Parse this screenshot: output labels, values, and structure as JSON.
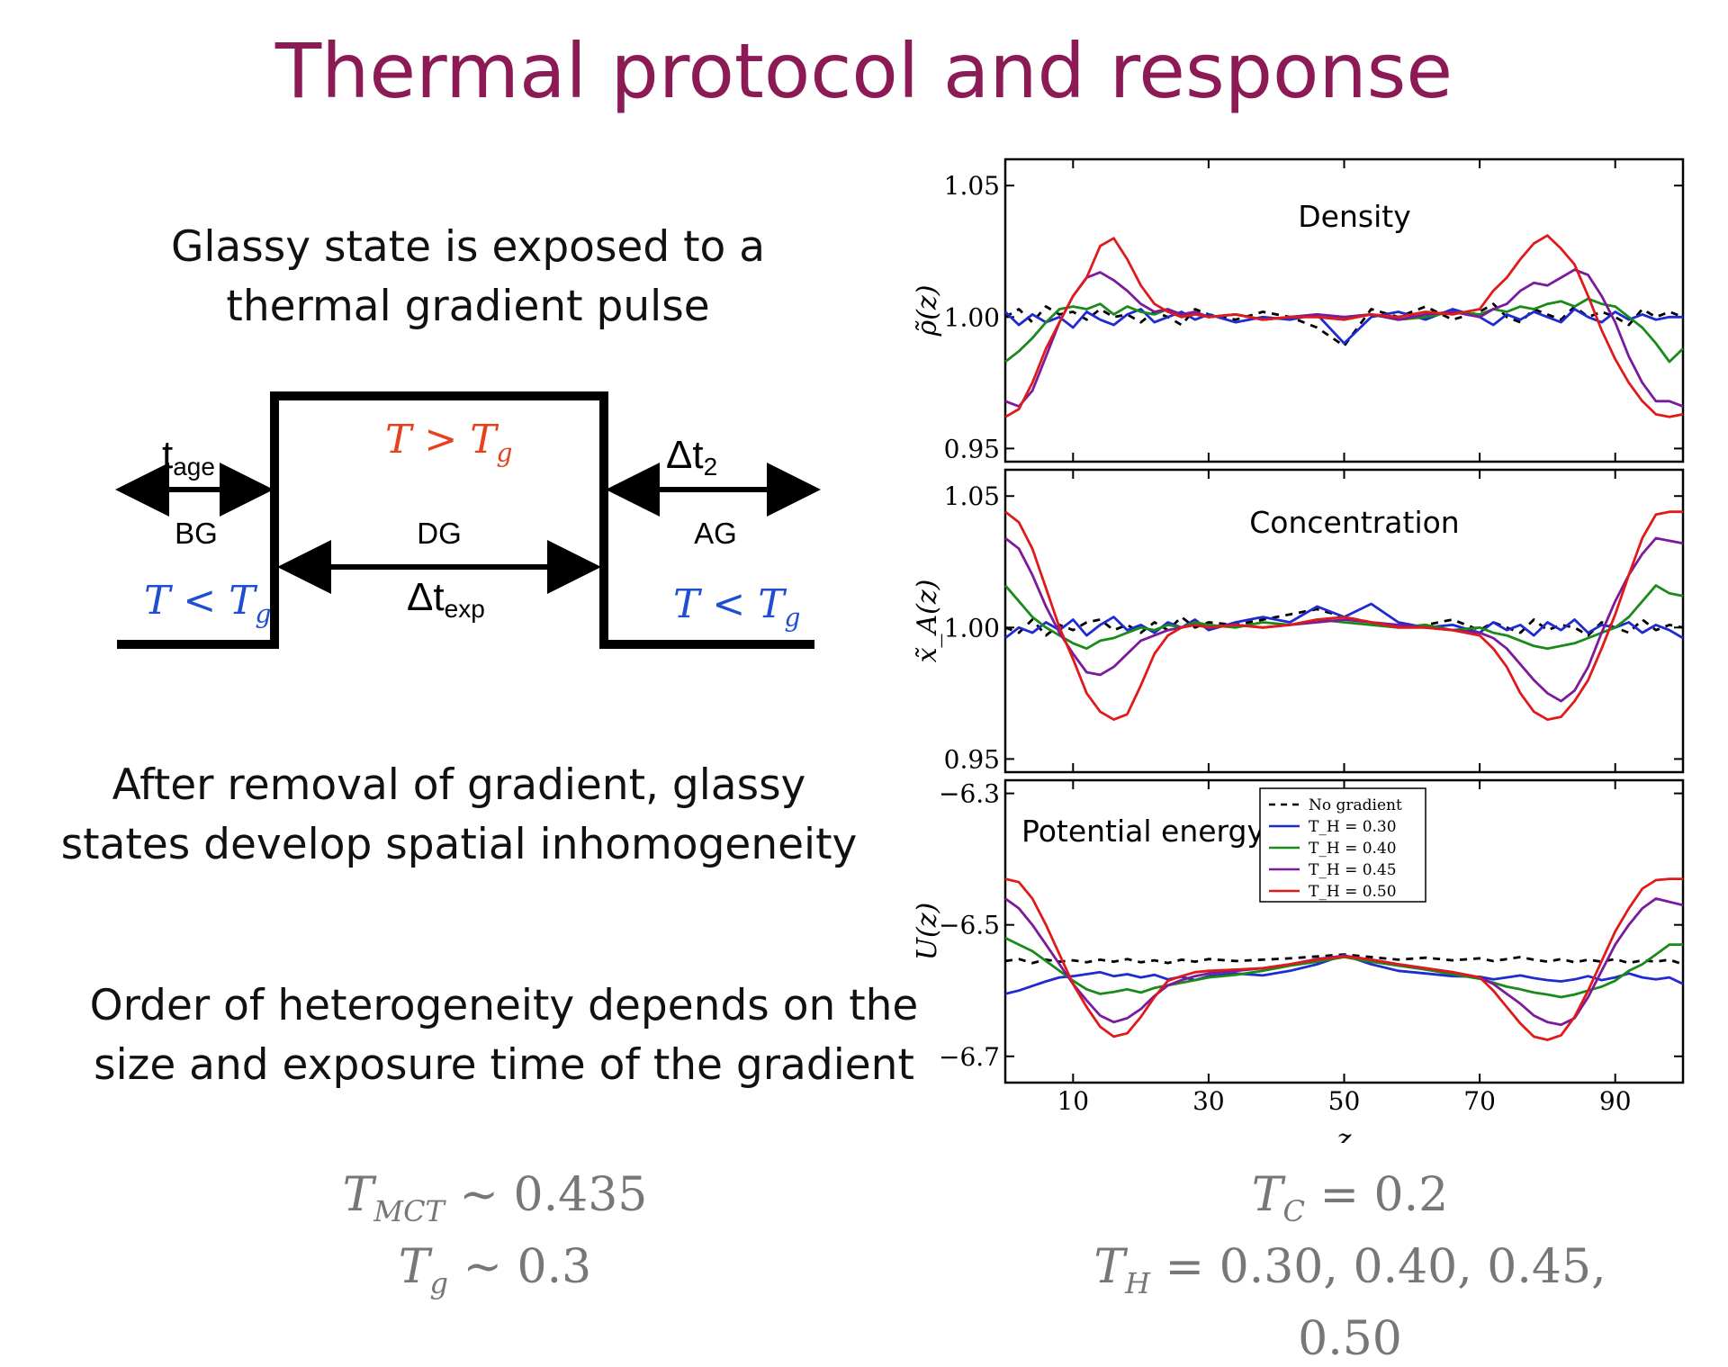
{
  "title": "Thermal protocol and response",
  "text1": [
    "Glassy state is exposed to a",
    "thermal gradient pulse"
  ],
  "text2": [
    "After removal of gradient, glassy",
    "states develop spatial inhomogeneity"
  ],
  "text3": [
    "Order of heterogeneity depends on the",
    "size and exposure time of the gradient"
  ],
  "protocol": {
    "t_age": "t",
    "t_age_sub": "age",
    "bg": "BG",
    "dg": "DG",
    "ag": "AG",
    "dt2": "Δt",
    "dt2_sub": "2",
    "dtexp": "Δt",
    "dtexp_sub": "exp",
    "hot": "T > T",
    "hot_sub": "g",
    "cold_left": "T < T",
    "cold_left_sub": "g",
    "cold_right": "T < T",
    "cold_right_sub": "g",
    "hot_color": "#e8401c",
    "cold_color": "#1f4fd1"
  },
  "bottom_left": {
    "tmct": "T",
    "tmct_sub": "MCT",
    "tmct_val": " ~ 0.435",
    "tg": "T",
    "tg_sub": "g",
    "tg_val": " ~ 0.3"
  },
  "bottom_right": {
    "tc": "T",
    "tc_sub": "C",
    "tc_val": " = 0.2",
    "th": "T",
    "th_sub": "H",
    "th_val": " = 0.30, 0.40, 0.45, 0.50"
  },
  "chart_data": [
    {
      "type": "line",
      "title": "Density",
      "ylabel": "ρ̃(z)",
      "xlim": [
        0,
        100
      ],
      "ylim": [
        0.945,
        1.06
      ],
      "yticks": [
        0.95,
        1.0,
        1.05
      ],
      "ytick_labels": [
        "0.95",
        "1.00",
        "1.05"
      ],
      "xticks": [
        10,
        30,
        50,
        70,
        90
      ],
      "x": [
        0,
        2,
        4,
        6,
        8,
        10,
        12,
        14,
        16,
        18,
        20,
        22,
        24,
        26,
        28,
        30,
        34,
        38,
        42,
        46,
        50,
        54,
        58,
        62,
        66,
        70,
        72,
        74,
        76,
        78,
        80,
        82,
        84,
        86,
        88,
        90,
        92,
        94,
        96,
        98,
        100
      ],
      "series": [
        {
          "name": "No gradient",
          "color": "#000000",
          "dashed": true,
          "values": [
            1.0,
            1.003,
            0.998,
            1.004,
            1.001,
            1.002,
            0.999,
            1.003,
            1.0,
            1.001,
            0.998,
            1.002,
            1.0,
            0.997,
            1.003,
            1.001,
            0.999,
            1.002,
            1.0,
            0.996,
            0.989,
            1.003,
            1.0,
            1.004,
            0.999,
            1.002,
            1.005,
            1.0,
            0.998,
            1.003,
            1.001,
            0.999,
            1.004,
            1.0,
            1.002,
            1.0,
            0.997,
            1.003,
            1.0,
            1.002,
            1.0
          ]
        },
        {
          "name": "T_H = 0.30",
          "color": "#1f2bd1",
          "values": [
            1.002,
            0.997,
            1.001,
            0.998,
            1.0,
            0.996,
            1.002,
            0.999,
            0.997,
            1.001,
            1.003,
            0.998,
            1.0,
            1.002,
            0.999,
            1.001,
            0.998,
            1.0,
            0.999,
            1.001,
            0.99,
            1.0,
            1.002,
            0.999,
            1.003,
            1.0,
            0.997,
            1.001,
            0.999,
            1.002,
            1.0,
            0.998,
            1.003,
            1.0,
            0.998,
            1.002,
            0.999,
            1.001,
            0.999,
            1.0,
            1.0
          ]
        },
        {
          "name": "T_H = 0.40",
          "color": "#1a8a1a",
          "values": [
            0.983,
            0.987,
            0.992,
            0.998,
            1.003,
            1.004,
            1.003,
            1.005,
            1.001,
            1.004,
            1.002,
            1.001,
            1.003,
            1.0,
            1.002,
            1.0,
            1.001,
            0.999,
            1.0,
            1.001,
            1.0,
            1.001,
            0.999,
            1.0,
            1.002,
            1.001,
            1.003,
            1.002,
            1.004,
            1.003,
            1.005,
            1.006,
            1.004,
            1.007,
            1.005,
            1.004,
            1.0,
            0.996,
            0.99,
            0.983,
            0.988
          ]
        },
        {
          "name": "T_H = 0.45",
          "color": "#7b1a9a",
          "values": [
            0.968,
            0.966,
            0.972,
            0.985,
            0.998,
            1.008,
            1.015,
            1.017,
            1.014,
            1.01,
            1.005,
            1.002,
            1.003,
            1.001,
            1.002,
            1.0,
            1.001,
            0.999,
            1.0,
            1.001,
            1.0,
            1.001,
            0.999,
            1.001,
            1.002,
            1.0,
            1.003,
            1.005,
            1.01,
            1.013,
            1.012,
            1.015,
            1.018,
            1.016,
            1.008,
            0.998,
            0.985,
            0.975,
            0.968,
            0.968,
            0.966
          ]
        },
        {
          "name": "T_H = 0.50",
          "color": "#e01a1a",
          "values": [
            0.962,
            0.965,
            0.975,
            0.988,
            0.998,
            1.008,
            1.015,
            1.027,
            1.03,
            1.022,
            1.012,
            1.005,
            1.002,
            1.0,
            1.001,
            1.0,
            1.001,
            0.999,
            1.0,
            1.0,
            0.999,
            1.001,
            1.0,
            1.002,
            1.001,
            1.003,
            1.01,
            1.015,
            1.022,
            1.028,
            1.031,
            1.026,
            1.02,
            1.008,
            0.995,
            0.984,
            0.975,
            0.968,
            0.963,
            0.962,
            0.963
          ]
        }
      ]
    },
    {
      "type": "line",
      "title": "Concentration",
      "ylabel": "x̃_A(z)",
      "xlim": [
        0,
        100
      ],
      "ylim": [
        0.945,
        1.06
      ],
      "yticks": [
        0.95,
        1.0,
        1.05
      ],
      "ytick_labels": [
        "0.95",
        "1.00",
        "1.05"
      ],
      "xticks": [
        10,
        30,
        50,
        70,
        90
      ],
      "x": [
        0,
        2,
        4,
        6,
        8,
        10,
        12,
        14,
        16,
        18,
        20,
        22,
        24,
        26,
        28,
        30,
        34,
        38,
        42,
        46,
        50,
        54,
        58,
        62,
        66,
        70,
        72,
        74,
        76,
        78,
        80,
        82,
        84,
        86,
        88,
        90,
        92,
        94,
        96,
        98,
        100
      ],
      "series": [
        {
          "name": "No gradient",
          "color": "#000000",
          "dashed": true,
          "values": [
            1.0,
            0.998,
            1.003,
            0.997,
            1.001,
            0.999,
            1.002,
            1.003,
            0.999,
            1.001,
            0.998,
            1.002,
            0.999,
            1.004,
            1.0,
            1.002,
            1.001,
            1.003,
            1.005,
            1.007,
            1.004,
            1.002,
            1.0,
            1.001,
            1.003,
            0.999,
            1.002,
            1.0,
            0.998,
            1.003,
            0.999,
            1.001,
            1.0,
            0.997,
            1.002,
            1.0,
            0.998,
            1.003,
            0.999,
            1.001,
            1.0
          ]
        },
        {
          "name": "T_H = 0.30",
          "color": "#1f2bd1",
          "values": [
            0.996,
            1.0,
            0.998,
            1.002,
            0.999,
            1.003,
            0.997,
            1.001,
            1.004,
            0.999,
            1.001,
            0.998,
            1.002,
            1.0,
            1.003,
            0.999,
            1.002,
            1.004,
            1.002,
            1.008,
            1.004,
            1.009,
            1.002,
            1.0,
            1.001,
            0.998,
            1.002,
            0.999,
            1.001,
            0.997,
            1.002,
            0.999,
            1.003,
            0.998,
            1.001,
            1.0,
            1.002,
            0.998,
            1.001,
            0.999,
            0.996
          ]
        },
        {
          "name": "T_H = 0.40",
          "color": "#1a8a1a",
          "values": [
            1.016,
            1.01,
            1.004,
            1.0,
            0.997,
            0.994,
            0.992,
            0.995,
            0.996,
            0.998,
            1.0,
            0.999,
            1.001,
            1.0,
            1.002,
            1.001,
            1.0,
            1.002,
            1.001,
            1.003,
            1.002,
            1.001,
            1.0,
            1.001,
            0.999,
            1.0,
            0.998,
            0.997,
            0.995,
            0.993,
            0.992,
            0.993,
            0.994,
            0.996,
            0.998,
            1.0,
            1.004,
            1.01,
            1.016,
            1.013,
            1.012
          ]
        },
        {
          "name": "T_H = 0.45",
          "color": "#7b1a9a",
          "values": [
            1.034,
            1.03,
            1.02,
            1.008,
            0.998,
            0.99,
            0.983,
            0.982,
            0.985,
            0.99,
            0.995,
            0.997,
            0.999,
            1.0,
            1.001,
            1.0,
            1.001,
            1.0,
            1.001,
            1.002,
            1.003,
            1.002,
            1.001,
            1.0,
            0.999,
            0.998,
            0.996,
            0.992,
            0.986,
            0.98,
            0.975,
            0.972,
            0.976,
            0.985,
            0.998,
            1.01,
            1.02,
            1.028,
            1.034,
            1.033,
            1.032
          ]
        },
        {
          "name": "T_H = 0.50",
          "color": "#e01a1a",
          "values": [
            1.044,
            1.04,
            1.03,
            1.015,
            1.0,
            0.988,
            0.975,
            0.968,
            0.965,
            0.967,
            0.978,
            0.99,
            0.997,
            1.0,
            1.001,
            1.0,
            1.001,
            1.0,
            1.001,
            1.003,
            1.004,
            1.002,
            1.0,
            1.0,
            0.999,
            0.997,
            0.992,
            0.985,
            0.975,
            0.968,
            0.965,
            0.966,
            0.972,
            0.98,
            0.992,
            1.005,
            1.02,
            1.034,
            1.043,
            1.044,
            1.044
          ]
        }
      ]
    },
    {
      "type": "line",
      "title": "Potential energy",
      "ylabel": "U(z)",
      "xlabel": "z",
      "xlim": [
        0,
        100
      ],
      "ylim": [
        -6.74,
        -6.28
      ],
      "yticks": [
        -6.3,
        -6.5,
        -6.7
      ],
      "ytick_labels": [
        "−6.3",
        "−6.5",
        "−6.7"
      ],
      "xticks": [
        10,
        30,
        50,
        70,
        90
      ],
      "xtick_labels": [
        "10",
        "30",
        "50",
        "70",
        "90"
      ],
      "x": [
        0,
        2,
        4,
        6,
        8,
        10,
        12,
        14,
        16,
        18,
        20,
        22,
        24,
        26,
        28,
        30,
        34,
        38,
        42,
        46,
        50,
        54,
        58,
        62,
        66,
        70,
        72,
        74,
        76,
        78,
        80,
        82,
        84,
        86,
        88,
        90,
        92,
        94,
        96,
        98,
        100
      ],
      "legend": {
        "position": "top-center",
        "entries": [
          "No gradient",
          "T_H = 0.30",
          "T_H = 0.40",
          "T_H = 0.45",
          "T_H = 0.50"
        ]
      },
      "series": [
        {
          "name": "No gradient",
          "color": "#000000",
          "dashed": true,
          "values": [
            -6.555,
            -6.552,
            -6.558,
            -6.553,
            -6.556,
            -6.554,
            -6.557,
            -6.553,
            -6.556,
            -6.552,
            -6.557,
            -6.554,
            -6.558,
            -6.553,
            -6.556,
            -6.552,
            -6.555,
            -6.553,
            -6.551,
            -6.548,
            -6.545,
            -6.549,
            -6.553,
            -6.55,
            -6.554,
            -6.551,
            -6.555,
            -6.552,
            -6.549,
            -6.553,
            -6.556,
            -6.552,
            -6.557,
            -6.553,
            -6.556,
            -6.552,
            -6.558,
            -6.554,
            -6.556,
            -6.553,
            -6.56
          ]
        },
        {
          "name": "T_H = 0.30",
          "color": "#1f2bd1",
          "values": [
            -6.605,
            -6.6,
            -6.593,
            -6.586,
            -6.58,
            -6.578,
            -6.575,
            -6.572,
            -6.578,
            -6.575,
            -6.58,
            -6.576,
            -6.583,
            -6.579,
            -6.584,
            -6.578,
            -6.574,
            -6.577,
            -6.57,
            -6.56,
            -6.546,
            -6.56,
            -6.57,
            -6.574,
            -6.578,
            -6.579,
            -6.583,
            -6.58,
            -6.577,
            -6.581,
            -6.584,
            -6.586,
            -6.583,
            -6.578,
            -6.584,
            -6.58,
            -6.574,
            -6.58,
            -6.583,
            -6.58,
            -6.59
          ]
        },
        {
          "name": "T_H = 0.40",
          "color": "#1a8a1a",
          "values": [
            -6.52,
            -6.53,
            -6.54,
            -6.555,
            -6.57,
            -6.585,
            -6.598,
            -6.605,
            -6.602,
            -6.598,
            -6.603,
            -6.596,
            -6.592,
            -6.588,
            -6.584,
            -6.58,
            -6.576,
            -6.57,
            -6.562,
            -6.556,
            -6.549,
            -6.556,
            -6.562,
            -6.568,
            -6.575,
            -6.582,
            -6.588,
            -6.594,
            -6.598,
            -6.603,
            -6.606,
            -6.61,
            -6.606,
            -6.6,
            -6.594,
            -6.585,
            -6.57,
            -6.56,
            -6.545,
            -6.53,
            -6.53
          ]
        },
        {
          "name": "T_H = 0.45",
          "color": "#7b1a9a",
          "values": [
            -6.46,
            -6.475,
            -6.5,
            -6.53,
            -6.56,
            -6.59,
            -6.615,
            -6.638,
            -6.648,
            -6.642,
            -6.628,
            -6.608,
            -6.592,
            -6.584,
            -6.578,
            -6.574,
            -6.57,
            -6.566,
            -6.56,
            -6.552,
            -6.547,
            -6.553,
            -6.56,
            -6.566,
            -6.572,
            -6.58,
            -6.59,
            -6.605,
            -6.62,
            -6.638,
            -6.648,
            -6.652,
            -6.642,
            -6.61,
            -6.57,
            -6.53,
            -6.5,
            -6.475,
            -6.46,
            -6.465,
            -6.47
          ]
        },
        {
          "name": "T_H = 0.50",
          "color": "#e01a1a",
          "values": [
            -6.43,
            -6.435,
            -6.46,
            -6.5,
            -6.545,
            -6.59,
            -6.625,
            -6.655,
            -6.67,
            -6.665,
            -6.64,
            -6.61,
            -6.585,
            -6.578,
            -6.572,
            -6.57,
            -6.568,
            -6.566,
            -6.56,
            -6.553,
            -6.548,
            -6.553,
            -6.56,
            -6.566,
            -6.572,
            -6.58,
            -6.6,
            -6.625,
            -6.65,
            -6.67,
            -6.675,
            -6.668,
            -6.64,
            -6.6,
            -6.555,
            -6.51,
            -6.475,
            -6.445,
            -6.432,
            -6.43,
            -6.43
          ]
        }
      ]
    }
  ]
}
